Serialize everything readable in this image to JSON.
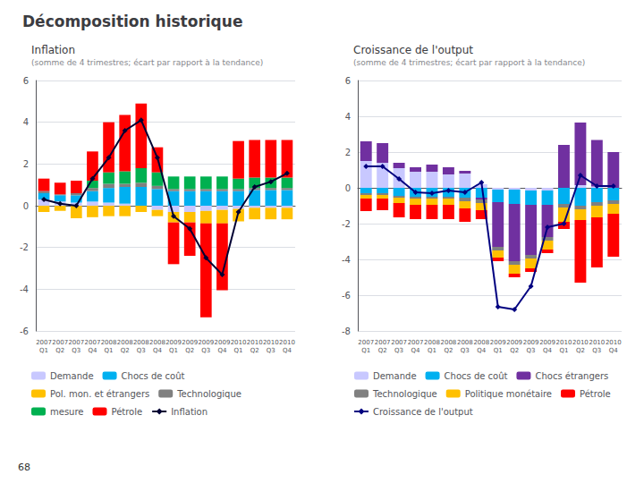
{
  "title": "Décomposition historique",
  "annotations": [
    "68"
  ],
  "chart_data": [
    {
      "type": "bar",
      "stacked": true,
      "grid": true,
      "legend": "bottom",
      "title": "Inflation",
      "subtitle": "(somme de 4 trimestres; écart par rapport à la tendance)",
      "categories": [
        "2007\nQ1",
        "2007\nQ2",
        "2007\nQ3",
        "2007\nQ4",
        "2008\nQ1",
        "2008\nQ2",
        "2008\nQ3",
        "2008\nQ4",
        "2009\nQ1",
        "2009\nQ2",
        "2009\nQ3",
        "2009\nQ4",
        "2010\nQ1",
        "2010\nQ2",
        "2010\nQ3",
        "2010\nQ4"
      ],
      "ylim": [
        -6,
        6
      ],
      "yticks": [
        -6,
        -4,
        -2,
        0,
        2,
        4,
        6
      ],
      "series": [
        {
          "name": "Demande",
          "color": "#c8c8ff",
          "values": [
            0.3,
            0.2,
            0.15,
            0.2,
            0.15,
            0.1,
            0.0,
            -0.2,
            -0.3,
            -0.3,
            -0.25,
            -0.2,
            -0.15,
            -0.1,
            -0.1,
            -0.1
          ]
        },
        {
          "name": "Chocs de coût",
          "color": "#00b0f0",
          "values": [
            0.3,
            0.3,
            0.35,
            0.5,
            0.7,
            0.8,
            0.9,
            0.8,
            0.7,
            0.7,
            0.7,
            0.7,
            0.7,
            0.75,
            0.75,
            0.75
          ]
        },
        {
          "name": "Pol. mon. et étrangers",
          "color": "#ffc000",
          "values": [
            -0.3,
            -0.25,
            -0.6,
            -0.55,
            -0.5,
            -0.5,
            -0.3,
            -0.3,
            -0.5,
            -0.5,
            -0.6,
            -0.65,
            -0.6,
            -0.55,
            -0.55,
            -0.55
          ]
        },
        {
          "name": "Technologique",
          "color": "#808080",
          "values": [
            0.1,
            0.05,
            0.1,
            0.15,
            0.2,
            0.15,
            0.2,
            0.15,
            0.1,
            0.1,
            0.1,
            0.1,
            0.1,
            0.1,
            0.1,
            0.1
          ]
        },
        {
          "name": "mesure",
          "color": "#00b050",
          "values": [
            0.0,
            0.0,
            0.0,
            0.35,
            0.55,
            0.6,
            0.7,
            0.65,
            0.6,
            0.6,
            0.6,
            0.6,
            0.5,
            0.5,
            0.5,
            0.5
          ]
        },
        {
          "name": "Pétrole",
          "color": "#ff0000",
          "values": [
            0.6,
            0.55,
            0.6,
            1.4,
            2.4,
            2.7,
            3.1,
            1.2,
            -2.0,
            -1.6,
            -4.5,
            -3.2,
            1.8,
            1.8,
            1.8,
            1.8
          ]
        },
        {
          "name": "Inflation",
          "type": "line",
          "marker": "diamond",
          "color": "#000033",
          "values": [
            0.3,
            0.1,
            0.0,
            1.3,
            2.3,
            3.6,
            4.1,
            2.3,
            -0.5,
            -1.1,
            -2.5,
            -3.3,
            -0.3,
            0.9,
            1.15,
            1.55
          ]
        }
      ]
    },
    {
      "type": "bar",
      "stacked": true,
      "grid": true,
      "legend": "bottom",
      "title": "Croissance de l'output",
      "subtitle": "(somme de 4 trimestres; écart par rapport à la tendance)",
      "categories": [
        "2007\nQ1",
        "2007\nQ2",
        "2007\nQ3",
        "2007\nQ4",
        "2008\nQ1",
        "2008\nQ2",
        "2008\nQ3",
        "2008\nQ4",
        "2009\nQ1",
        "2009\nQ2",
        "2009\nQ3",
        "2009\nQ4",
        "2010\nQ1",
        "2010\nQ2",
        "2010\nQ3",
        "2010\nQ4"
      ],
      "ylim": [
        -8,
        6
      ],
      "yticks": [
        -8,
        -6,
        -4,
        -2,
        0,
        2,
        4,
        6
      ],
      "series": [
        {
          "name": "Demande",
          "color": "#c8c8ff",
          "values": [
            1.5,
            1.4,
            1.1,
            0.9,
            0.9,
            0.75,
            0.8,
            0.2,
            -0.1,
            -0.1,
            -0.15,
            -0.15,
            0.0,
            0.15,
            0.08,
            0.0
          ]
        },
        {
          "name": "Chocs de coût",
          "color": "#00b0f0",
          "values": [
            -0.3,
            -0.3,
            -0.45,
            -0.5,
            -0.5,
            -0.5,
            -0.55,
            -0.55,
            -0.7,
            -0.8,
            -0.8,
            -0.8,
            -0.9,
            -1.0,
            -0.8,
            -0.7
          ]
        },
        {
          "name": "Chocs étrangers",
          "color": "#7030a0",
          "values": [
            1.1,
            1.1,
            0.3,
            0.25,
            0.4,
            0.4,
            0.15,
            -0.1,
            -2.5,
            -3.2,
            -2.8,
            -1.8,
            2.4,
            3.5,
            2.6,
            2.0
          ]
        },
        {
          "name": "Technologique",
          "color": "#808080",
          "values": [
            -0.1,
            -0.1,
            -0.1,
            -0.1,
            -0.1,
            -0.1,
            -0.2,
            -0.2,
            -0.2,
            -0.2,
            -0.2,
            -0.2,
            -0.2,
            -0.2,
            -0.2,
            -0.2
          ]
        },
        {
          "name": "Politique monétaire",
          "color": "#ffc000",
          "values": [
            -0.2,
            -0.2,
            -0.3,
            -0.35,
            -0.35,
            -0.35,
            -0.4,
            -0.4,
            -0.4,
            -0.5,
            -0.55,
            -0.5,
            -0.8,
            -0.6,
            -0.65,
            -0.55
          ]
        },
        {
          "name": "Pétrole",
          "color": "#ff0000",
          "values": [
            -0.7,
            -0.65,
            -0.8,
            -0.8,
            -0.8,
            -0.8,
            -0.75,
            -0.5,
            -0.2,
            -0.2,
            -0.2,
            -0.2,
            -0.4,
            -3.5,
            -2.8,
            -2.4
          ]
        },
        {
          "name": "Croissance de l'output",
          "type": "line",
          "marker": "diamond",
          "color": "#000080",
          "values": [
            1.2,
            1.2,
            0.5,
            -0.25,
            -0.3,
            -0.15,
            -0.25,
            0.3,
            -6.65,
            -6.8,
            -5.5,
            -2.2,
            -2.0,
            0.7,
            0.1,
            0.1
          ]
        }
      ]
    }
  ]
}
